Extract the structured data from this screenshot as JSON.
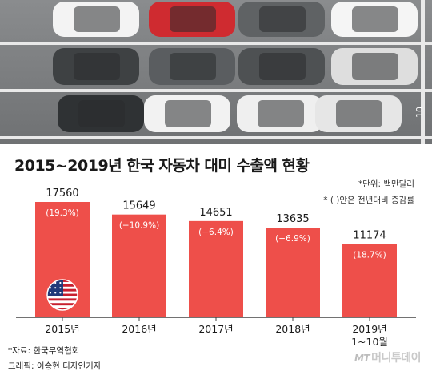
{
  "photo": {
    "slot_number": "10"
  },
  "title": "2015~2019년 한국 자동차 대미 수출액 현황",
  "notes": {
    "unit": "*단위: 백만달러",
    "paren": "* ( )안은 전년대비 증감률"
  },
  "source": {
    "data": "*자료: 한국무역협회",
    "graphic": "그래픽: 이승현 디자인기자"
  },
  "brand": {
    "prefix": "MT",
    "name": "머니투데이"
  },
  "colors": {
    "bar": "#ee4f4a",
    "axis": "#444444",
    "text": "#1a1a1a",
    "label_inside": "#ffffff"
  },
  "icons": {
    "flag": "us-flag-icon"
  },
  "chart_data": {
    "type": "bar",
    "title": "2015~2019년 한국 자동차 대미 수출액 현황",
    "categories": [
      "2015년",
      "2016년",
      "2017년",
      "2018년",
      "2019년 1~10월"
    ],
    "values": [
      17560,
      15649,
      14651,
      13635,
      11174
    ],
    "value_labels": [
      "17560",
      "15649",
      "14651",
      "13635",
      "11174"
    ],
    "change_labels": [
      "(19.3%)",
      "(−10.9%)",
      "(−6.4%)",
      "(−6.9%)",
      "(18.7%)"
    ],
    "unit": "백만달러",
    "ylim": [
      0,
      18500
    ],
    "grid": false,
    "legend": "none"
  }
}
